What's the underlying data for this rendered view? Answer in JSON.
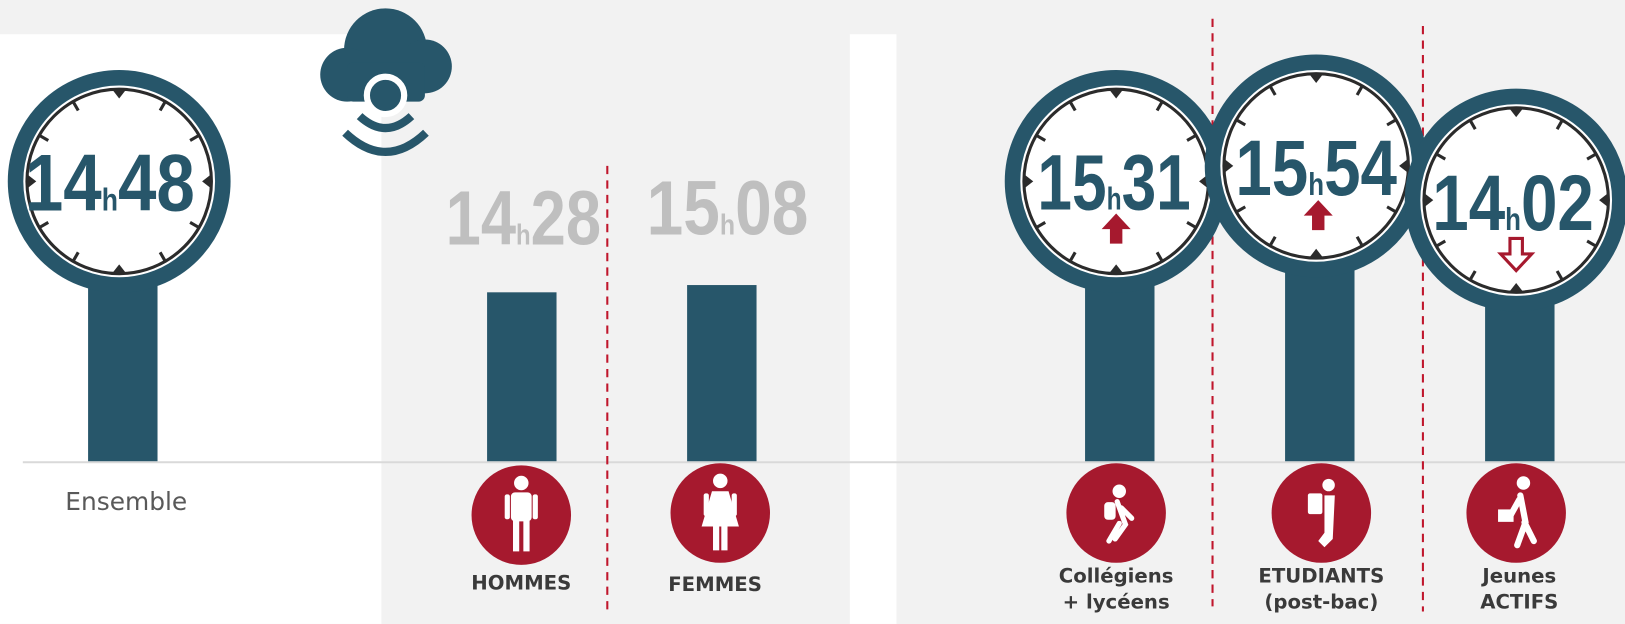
{
  "unit": "h",
  "ensemble": {
    "hours": "14",
    "minutes": "48",
    "label": "Ensemble"
  },
  "sexe": [
    {
      "hours": "14",
      "minutes": "28",
      "label": "HOMMES"
    },
    {
      "hours": "15",
      "minutes": "08",
      "label": "FEMMES"
    }
  ],
  "profils": [
    {
      "hours": "15",
      "minutes": "31",
      "label_lines": [
        "Collégiens",
        "+ lycéens"
      ]
    },
    {
      "hours": "15",
      "minutes": "54",
      "label_lines": [
        "ETUDIANTS",
        "(post-bac)"
      ]
    },
    {
      "hours": "14",
      "minutes": "02",
      "label_lines": [
        "Jeunes",
        "ACTIFS"
      ]
    }
  ]
}
